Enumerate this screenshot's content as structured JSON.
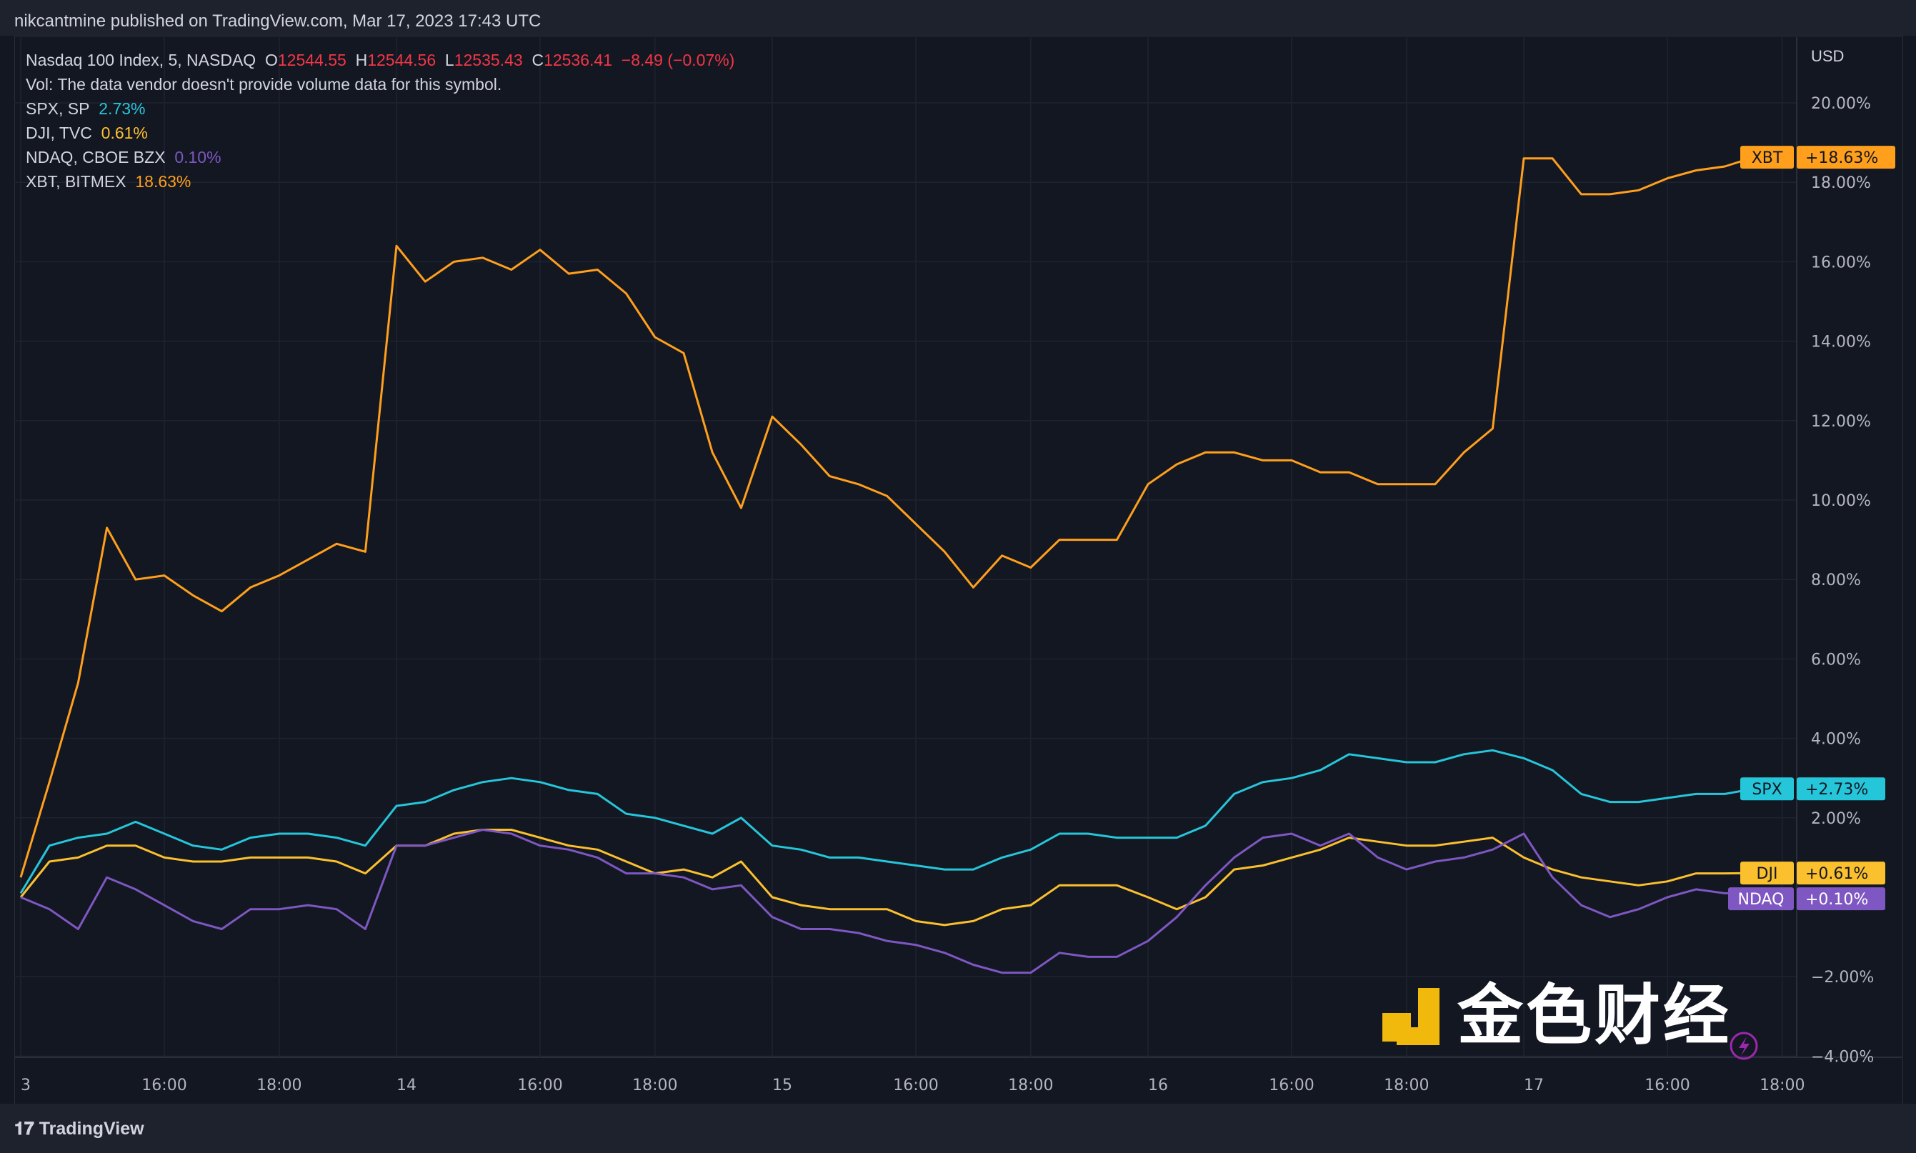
{
  "header": {
    "published": "nikcantmine published on TradingView.com, Mar 17, 2023 17:43 UTC"
  },
  "legend": {
    "main_symbol": "Nasdaq 100 Index, 5, NASDAQ",
    "o_label": "O",
    "o": "12544.55",
    "h_label": "H",
    "h": "12544.56",
    "l_label": "L",
    "l": "12535.43",
    "c_label": "C",
    "c": "12536.41",
    "change": "−8.49 (−0.07%)",
    "vol": "Vol: The data vendor doesn't provide volume data for this symbol.",
    "rows": [
      {
        "name": "SPX, SP",
        "value": "2.73%",
        "color": "#26c6da"
      },
      {
        "name": "DJI, TVC",
        "value": "0.61%",
        "color": "#fbc02d"
      },
      {
        "name": "NDAQ, CBOE BZX",
        "value": "0.10%",
        "color": "#7e57c2"
      },
      {
        "name": "XBT, BITMEX",
        "value": "18.63%",
        "color": "#ff9f1c"
      }
    ]
  },
  "footer": {
    "brand": "TradingView",
    "watermark": "金色财经"
  },
  "chart_data": {
    "type": "line",
    "currency": "USD",
    "ylim": [
      -4,
      20
    ],
    "y_ticks": [
      "20.00%",
      "18.00%",
      "16.00%",
      "14.00%",
      "12.00%",
      "10.00%",
      "8.00%",
      "6.00%",
      "4.00%",
      "2.00%",
      "−2.00%",
      "−4.00%"
    ],
    "y_tick_values": [
      20,
      18,
      16,
      14,
      12,
      10,
      8,
      6,
      4,
      2,
      -2,
      -4
    ],
    "x_ticks": [
      {
        "label": "3",
        "t": "2023-03-13 13:30"
      },
      {
        "label": "16:00",
        "t": "2023-03-13 16:00"
      },
      {
        "label": "18:00",
        "t": "2023-03-13 18:00"
      },
      {
        "label": "14",
        "t": "2023-03-14 13:30"
      },
      {
        "label": "16:00",
        "t": "2023-03-14 16:00"
      },
      {
        "label": "18:00",
        "t": "2023-03-14 18:00"
      },
      {
        "label": "15",
        "t": "2023-03-15 13:30"
      },
      {
        "label": "16:00",
        "t": "2023-03-15 16:00"
      },
      {
        "label": "18:00",
        "t": "2023-03-15 18:00"
      },
      {
        "label": "16",
        "t": "2023-03-16 13:30"
      },
      {
        "label": "16:00",
        "t": "2023-03-16 16:00"
      },
      {
        "label": "18:00",
        "t": "2023-03-16 18:00"
      },
      {
        "label": "17",
        "t": "2023-03-17 13:30"
      },
      {
        "label": "16:00",
        "t": "2023-03-17 16:00"
      },
      {
        "label": "18:00",
        "t": "2023-03-17 18:00"
      }
    ],
    "grid": true,
    "x": [
      "2023-03-13 13:30",
      "2023-03-13 14:00",
      "2023-03-13 14:30",
      "2023-03-13 15:00",
      "2023-03-13 15:30",
      "2023-03-13 16:00",
      "2023-03-13 16:30",
      "2023-03-13 17:00",
      "2023-03-13 17:30",
      "2023-03-13 18:00",
      "2023-03-13 18:30",
      "2023-03-13 19:00",
      "2023-03-13 19:30",
      "2023-03-14 13:30",
      "2023-03-14 14:00",
      "2023-03-14 14:30",
      "2023-03-14 15:00",
      "2023-03-14 15:30",
      "2023-03-14 16:00",
      "2023-03-14 16:30",
      "2023-03-14 17:00",
      "2023-03-14 17:30",
      "2023-03-14 18:00",
      "2023-03-14 18:30",
      "2023-03-14 19:00",
      "2023-03-14 19:30",
      "2023-03-15 13:30",
      "2023-03-15 14:00",
      "2023-03-15 14:30",
      "2023-03-15 15:00",
      "2023-03-15 15:30",
      "2023-03-15 16:00",
      "2023-03-15 16:30",
      "2023-03-15 17:00",
      "2023-03-15 17:30",
      "2023-03-15 18:00",
      "2023-03-15 18:30",
      "2023-03-15 19:00",
      "2023-03-15 19:30",
      "2023-03-16 13:30",
      "2023-03-16 14:00",
      "2023-03-16 14:30",
      "2023-03-16 15:00",
      "2023-03-16 15:30",
      "2023-03-16 16:00",
      "2023-03-16 16:30",
      "2023-03-16 17:00",
      "2023-03-16 17:30",
      "2023-03-16 18:00",
      "2023-03-16 18:30",
      "2023-03-16 19:00",
      "2023-03-16 19:30",
      "2023-03-17 13:30",
      "2023-03-17 14:00",
      "2023-03-17 14:30",
      "2023-03-17 15:00",
      "2023-03-17 15:30",
      "2023-03-17 16:00",
      "2023-03-17 16:30",
      "2023-03-17 17:00",
      "2023-03-17 17:30"
    ],
    "series": [
      {
        "name": "XBT",
        "tag": "+18.63%",
        "color": "#ff9f1c",
        "values": [
          0.5,
          2.9,
          5.4,
          9.3,
          8.0,
          8.1,
          7.6,
          7.2,
          7.8,
          8.1,
          8.5,
          8.9,
          8.7,
          16.4,
          15.5,
          16.0,
          16.1,
          15.8,
          16.3,
          15.7,
          15.8,
          15.2,
          14.1,
          13.7,
          11.2,
          9.8,
          12.1,
          11.4,
          10.6,
          10.4,
          10.1,
          9.4,
          8.7,
          7.8,
          8.6,
          8.3,
          9.0,
          9.0,
          9.0,
          10.4,
          10.9,
          11.2,
          11.2,
          11.0,
          11.0,
          10.7,
          10.7,
          10.4,
          10.4,
          10.4,
          11.2,
          11.8,
          18.6,
          18.6,
          17.7,
          17.7,
          17.8,
          18.1,
          18.3,
          18.4,
          18.63
        ]
      },
      {
        "name": "SPX",
        "tag": "+2.73%",
        "color": "#26c6da",
        "values": [
          0.1,
          1.3,
          1.5,
          1.6,
          1.9,
          1.6,
          1.3,
          1.2,
          1.5,
          1.6,
          1.6,
          1.5,
          1.3,
          2.3,
          2.4,
          2.7,
          2.9,
          3.0,
          2.9,
          2.7,
          2.6,
          2.1,
          2.0,
          1.8,
          1.6,
          2.0,
          1.3,
          1.2,
          1.0,
          1.0,
          0.9,
          0.8,
          0.7,
          0.7,
          1.0,
          1.2,
          1.6,
          1.6,
          1.5,
          1.5,
          1.5,
          1.8,
          2.6,
          2.9,
          3.0,
          3.2,
          3.6,
          3.5,
          3.4,
          3.4,
          3.6,
          3.7,
          3.5,
          3.2,
          2.6,
          2.4,
          2.4,
          2.5,
          2.6,
          2.6,
          2.73
        ]
      },
      {
        "name": "DJI",
        "tag": "+0.61%",
        "color": "#fbc02d",
        "values": [
          0.0,
          0.9,
          1.0,
          1.3,
          1.3,
          1.0,
          0.9,
          0.9,
          1.0,
          1.0,
          1.0,
          0.9,
          0.6,
          1.3,
          1.3,
          1.6,
          1.7,
          1.7,
          1.5,
          1.3,
          1.2,
          0.9,
          0.6,
          0.7,
          0.5,
          0.9,
          0.0,
          -0.2,
          -0.3,
          -0.3,
          -0.3,
          -0.6,
          -0.7,
          -0.6,
          -0.3,
          -0.2,
          0.3,
          0.3,
          0.3,
          0.0,
          -0.3,
          0.0,
          0.7,
          0.8,
          1.0,
          1.2,
          1.5,
          1.4,
          1.3,
          1.3,
          1.4,
          1.5,
          1.0,
          0.7,
          0.5,
          0.4,
          0.3,
          0.4,
          0.6,
          0.6,
          0.61
        ]
      },
      {
        "name": "NDAQ",
        "tag": "+0.10%",
        "color": "#7e57c2",
        "values": [
          0.0,
          -0.3,
          -0.8,
          0.5,
          0.2,
          -0.2,
          -0.6,
          -0.8,
          -0.3,
          -0.3,
          -0.2,
          -0.3,
          -0.8,
          1.3,
          1.3,
          1.5,
          1.7,
          1.6,
          1.3,
          1.2,
          1.0,
          0.6,
          0.6,
          0.5,
          0.2,
          0.3,
          -0.5,
          -0.8,
          -0.8,
          -0.9,
          -1.1,
          -1.2,
          -1.4,
          -1.7,
          -1.9,
          -1.9,
          -1.4,
          -1.5,
          -1.5,
          -1.1,
          -0.5,
          0.3,
          1.0,
          1.5,
          1.6,
          1.3,
          1.6,
          1.0,
          0.7,
          0.9,
          1.0,
          1.2,
          1.6,
          0.5,
          -0.2,
          -0.5,
          -0.3,
          0.0,
          0.2,
          0.1,
          0.1
        ]
      }
    ]
  }
}
